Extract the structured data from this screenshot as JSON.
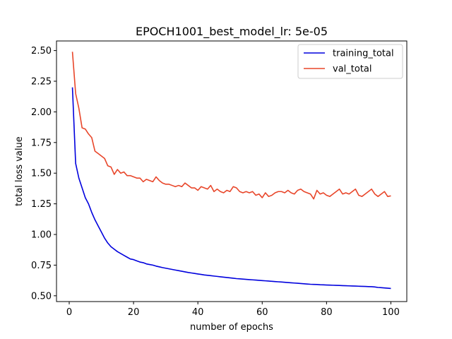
{
  "chart_data": {
    "type": "line",
    "title": "EPOCH1001_best_model_lr: 5e-05",
    "xlabel": "number of epochs",
    "ylabel": "total loss value",
    "xlim": [
      -3.95,
      104.95
    ],
    "ylim": [
      0.4528,
      2.5783
    ],
    "xticks": [
      0,
      20,
      40,
      60,
      80,
      100
    ],
    "xtick_labels": [
      "0",
      "20",
      "40",
      "60",
      "80",
      "100"
    ],
    "yticks": [
      0.5,
      0.75,
      1.0,
      1.25,
      1.5,
      1.75,
      2.0,
      2.25,
      2.5
    ],
    "ytick_labels": [
      "0.50",
      "0.75",
      "1.00",
      "1.25",
      "1.50",
      "1.75",
      "2.00",
      "2.25",
      "2.50"
    ],
    "grid": false,
    "legend_position": "top-right",
    "series": [
      {
        "name": "training_total",
        "color": "#0000dd",
        "x_start": 1,
        "x_step": 1,
        "values": [
          2.2,
          1.58,
          1.46,
          1.38,
          1.3,
          1.25,
          1.18,
          1.12,
          1.07,
          1.02,
          0.97,
          0.93,
          0.9,
          0.88,
          0.86,
          0.845,
          0.83,
          0.815,
          0.8,
          0.795,
          0.785,
          0.775,
          0.77,
          0.76,
          0.755,
          0.75,
          0.742,
          0.736,
          0.73,
          0.725,
          0.72,
          0.715,
          0.71,
          0.705,
          0.7,
          0.695,
          0.69,
          0.686,
          0.682,
          0.678,
          0.674,
          0.67,
          0.667,
          0.664,
          0.661,
          0.658,
          0.655,
          0.652,
          0.649,
          0.646,
          0.643,
          0.64,
          0.638,
          0.636,
          0.634,
          0.632,
          0.63,
          0.628,
          0.626,
          0.624,
          0.622,
          0.62,
          0.618,
          0.616,
          0.614,
          0.612,
          0.61,
          0.608,
          0.606,
          0.604,
          0.602,
          0.6,
          0.598,
          0.596,
          0.594,
          0.593,
          0.592,
          0.59,
          0.589,
          0.588,
          0.587,
          0.586,
          0.585,
          0.584,
          0.583,
          0.582,
          0.581,
          0.58,
          0.579,
          0.578,
          0.577,
          0.576,
          0.575,
          0.574,
          0.572,
          0.568,
          0.566,
          0.564,
          0.562,
          0.56
        ]
      },
      {
        "name": "val_total",
        "color": "#e8462a",
        "x_start": 1,
        "x_step": 1,
        "values": [
          2.49,
          2.15,
          2.03,
          1.87,
          1.86,
          1.82,
          1.79,
          1.68,
          1.66,
          1.64,
          1.62,
          1.56,
          1.55,
          1.49,
          1.53,
          1.5,
          1.51,
          1.48,
          1.48,
          1.47,
          1.46,
          1.46,
          1.43,
          1.45,
          1.44,
          1.43,
          1.47,
          1.44,
          1.42,
          1.41,
          1.41,
          1.4,
          1.39,
          1.4,
          1.39,
          1.42,
          1.4,
          1.38,
          1.38,
          1.36,
          1.39,
          1.38,
          1.37,
          1.4,
          1.35,
          1.37,
          1.35,
          1.34,
          1.36,
          1.35,
          1.39,
          1.38,
          1.35,
          1.34,
          1.35,
          1.34,
          1.35,
          1.32,
          1.33,
          1.3,
          1.34,
          1.31,
          1.32,
          1.34,
          1.35,
          1.35,
          1.34,
          1.36,
          1.34,
          1.33,
          1.36,
          1.37,
          1.35,
          1.34,
          1.33,
          1.29,
          1.36,
          1.33,
          1.34,
          1.32,
          1.31,
          1.33,
          1.35,
          1.37,
          1.33,
          1.34,
          1.33,
          1.35,
          1.37,
          1.32,
          1.31,
          1.33,
          1.35,
          1.37,
          1.33,
          1.31,
          1.33,
          1.35,
          1.31,
          1.315
        ]
      }
    ]
  }
}
